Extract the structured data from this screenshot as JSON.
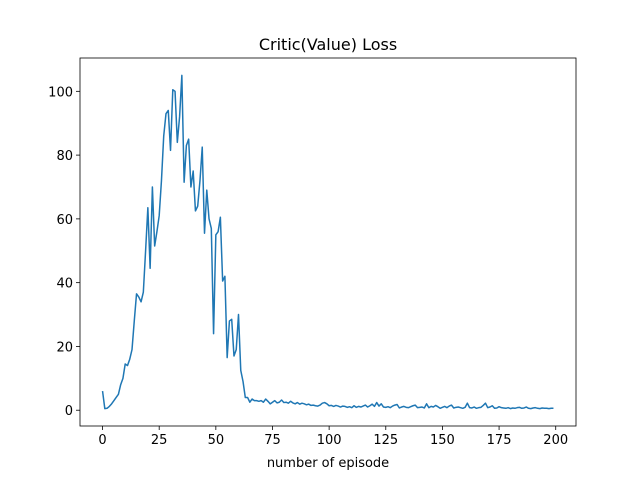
{
  "chart_data": {
    "type": "line",
    "title": "Critic(Value) Loss",
    "x_label": "number of episode",
    "x": [
      0,
      1,
      2,
      3,
      4,
      5,
      6,
      7,
      8,
      9,
      10,
      11,
      12,
      13,
      14,
      15,
      16,
      17,
      18,
      19,
      20,
      21,
      22,
      23,
      24,
      25,
      26,
      27,
      28,
      29,
      30,
      31,
      32,
      33,
      34,
      35,
      36,
      37,
      38,
      39,
      40,
      41,
      42,
      43,
      44,
      45,
      46,
      47,
      48,
      49,
      50,
      51,
      52,
      53,
      54,
      55,
      56,
      57,
      58,
      59,
      60,
      61,
      62,
      63,
      64,
      65,
      66,
      67,
      68,
      69,
      70,
      71,
      72,
      73,
      74,
      75,
      76,
      77,
      78,
      79,
      80,
      81,
      82,
      83,
      84,
      85,
      86,
      87,
      88,
      89,
      90,
      91,
      92,
      93,
      94,
      95,
      96,
      97,
      98,
      99,
      100,
      101,
      102,
      103,
      104,
      105,
      106,
      107,
      108,
      109,
      110,
      111,
      112,
      113,
      114,
      115,
      116,
      117,
      118,
      119,
      120,
      121,
      122,
      123,
      124,
      125,
      126,
      127,
      128,
      129,
      130,
      131,
      132,
      133,
      134,
      135,
      136,
      137,
      138,
      139,
      140,
      141,
      142,
      143,
      144,
      145,
      146,
      147,
      148,
      149,
      150,
      151,
      152,
      153,
      154,
      155,
      156,
      157,
      158,
      159,
      160,
      161,
      162,
      163,
      164,
      165,
      166,
      167,
      168,
      169,
      170,
      171,
      172,
      173,
      174,
      175,
      176,
      177,
      178,
      179,
      180,
      181,
      182,
      183,
      184,
      185,
      186,
      187,
      188,
      189,
      190,
      191,
      192,
      193,
      194,
      195,
      196,
      197,
      198,
      199
    ],
    "series": [
      {
        "color": "#1f77b4",
        "values": [
          6,
          0.5,
          0.6,
          1.2,
          2,
          3,
          4,
          5,
          8,
          10,
          14.5,
          14,
          16,
          19,
          28,
          36.5,
          35.5,
          34,
          37,
          50,
          63.5,
          44.5,
          70,
          51.5,
          56,
          61,
          72,
          86,
          93,
          94,
          81.5,
          100.5,
          100,
          84,
          92,
          105,
          71.5,
          83,
          85,
          70,
          75,
          62.5,
          64,
          72,
          82.5,
          55.5,
          69,
          60,
          57,
          24,
          55,
          56,
          60.5,
          40.5,
          42,
          16.5,
          28,
          28.5,
          17,
          19,
          30,
          12.5,
          9,
          4,
          4,
          2.5,
          3.5,
          3,
          3,
          2.8,
          3,
          2.5,
          3.5,
          2.8,
          2,
          2.5,
          3,
          2.3,
          2.5,
          3.2,
          2.4,
          2.5,
          2.2,
          2.8,
          2.3,
          2.0,
          2.4,
          1.9,
          2.2,
          2.0,
          1.7,
          1.9,
          1.5,
          1.6,
          1.4,
          1.3,
          1.6,
          2.2,
          2.4,
          2.0,
          1.4,
          1.5,
          1.2,
          1.5,
          1.3,
          1.0,
          1.3,
          1.2,
          0.9,
          1.1,
          0.8,
          1.4,
          0.9,
          1.2,
          1.0,
          1.3,
          1.6,
          1.0,
          1.4,
          1.9,
          1.2,
          2.4,
          1.3,
          2.0,
          1.0,
          0.9,
          1.1,
          0.8,
          1.3,
          1.6,
          1.8,
          0.7,
          1.0,
          1.2,
          0.9,
          0.8,
          1.1,
          1.4,
          1.6,
          0.8,
          0.9,
          1.0,
          0.7,
          2.0,
          0.8,
          1.2,
          1.0,
          1.5,
          1.1,
          0.6,
          0.9,
          1.2,
          0.8,
          1.3,
          1.6,
          0.7,
          0.9,
          1.0,
          0.8,
          0.6,
          0.9,
          2.2,
          0.8,
          0.7,
          1.0,
          0.6,
          0.8,
          0.9,
          1.5,
          2.2,
          0.8,
          1.0,
          1.4,
          0.6,
          0.7,
          1.1,
          0.8,
          0.7,
          0.6,
          0.8,
          0.5,
          0.7,
          0.6,
          0.8,
          0.9,
          0.6,
          0.7,
          1.0,
          0.6,
          0.5,
          0.7,
          0.8,
          0.6,
          0.5,
          0.7,
          0.6,
          0.6,
          0.5,
          0.6,
          0.6
        ]
      }
    ],
    "xlim": [
      -9.95,
      208.95
    ],
    "ylim": [
      -4.95,
      110.45
    ],
    "xticks": [
      0,
      25,
      50,
      75,
      100,
      125,
      150,
      175,
      200
    ],
    "yticks": [
      0,
      20,
      40,
      60,
      80,
      100
    ]
  }
}
